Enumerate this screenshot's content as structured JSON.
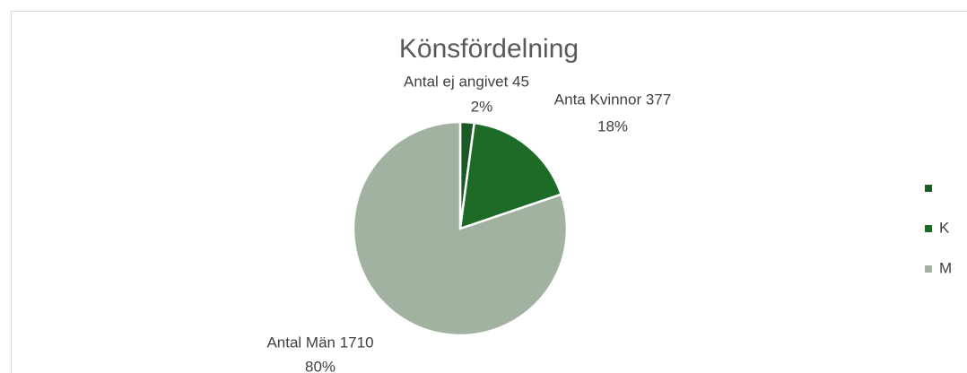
{
  "chart_data": {
    "type": "pie",
    "title": "Könsfördelning",
    "categories": [
      null,
      "K",
      "M"
    ],
    "values": [
      45,
      377,
      1710
    ],
    "value_labels": [
      "Antal ej angivet 45",
      "Anta Kvinnor 377",
      "Antal Män 1710"
    ],
    "percent_labels": [
      "2%",
      "18%",
      "80%"
    ],
    "colors": [
      "#1b5a27",
      "#1e6b28",
      "#a2b2a1"
    ],
    "legend": "right"
  }
}
